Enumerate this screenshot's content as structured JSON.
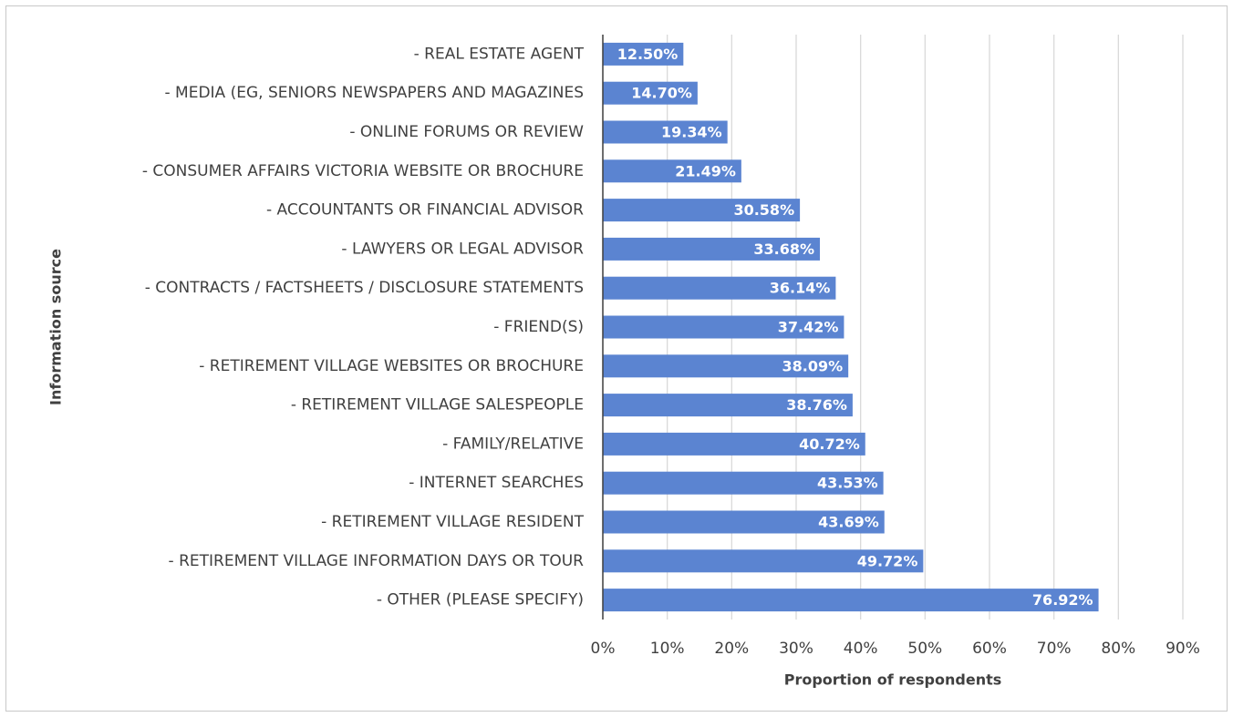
{
  "chart_data": {
    "type": "barh",
    "xlabel": "Proportion of respondents",
    "ylabel": "Information source",
    "categories": [
      "- REAL ESTATE AGENT",
      "- MEDIA (EG, SENIORS NEWSPAPERS AND MAGAZINES",
      "- ONLINE FORUMS OR REVIEW",
      "- CONSUMER AFFAIRS VICTORIA WEBSITE OR BROCHURE",
      "- ACCOUNTANTS OR FINANCIAL ADVISOR",
      "- LAWYERS OR LEGAL ADVISOR",
      "- CONTRACTS / FACTSHEETS / DISCLOSURE STATEMENTS",
      "- FRIEND(S)",
      "- RETIREMENT VILLAGE WEBSITES OR BROCHURE",
      "- RETIREMENT VILLAGE SALESPEOPLE",
      "- FAMILY/RELATIVE",
      "- INTERNET SEARCHES",
      "- RETIREMENT VILLAGE RESIDENT",
      "- RETIREMENT VILLAGE INFORMATION DAYS OR TOUR",
      "- OTHER (PLEASE SPECIFY)"
    ],
    "values": [
      12.5,
      14.7,
      19.34,
      21.49,
      30.58,
      33.68,
      36.14,
      37.42,
      38.09,
      38.76,
      40.72,
      43.53,
      43.69,
      49.72,
      76.92
    ],
    "value_labels": [
      "12.50%",
      "14.70%",
      "19.34%",
      "21.49%",
      "30.58%",
      "33.68%",
      "36.14%",
      "37.42%",
      "38.09%",
      "38.76%",
      "40.72%",
      "43.53%",
      "43.69%",
      "49.72%",
      "76.92%"
    ],
    "color": "#5b84d1",
    "xlim": [
      0,
      90
    ],
    "xticks": [
      {
        "value": 0,
        "label": "0%"
      },
      {
        "value": 10,
        "label": "10%"
      },
      {
        "value": 20,
        "label": "20%"
      },
      {
        "value": 30,
        "label": "30%"
      },
      {
        "value": 40,
        "label": "40%"
      },
      {
        "value": 50,
        "label": "50%"
      },
      {
        "value": 60,
        "label": "60%"
      },
      {
        "value": 70,
        "label": "70%"
      },
      {
        "value": 80,
        "label": "80%"
      },
      {
        "value": 90,
        "label": "90%"
      }
    ],
    "grid": true
  }
}
